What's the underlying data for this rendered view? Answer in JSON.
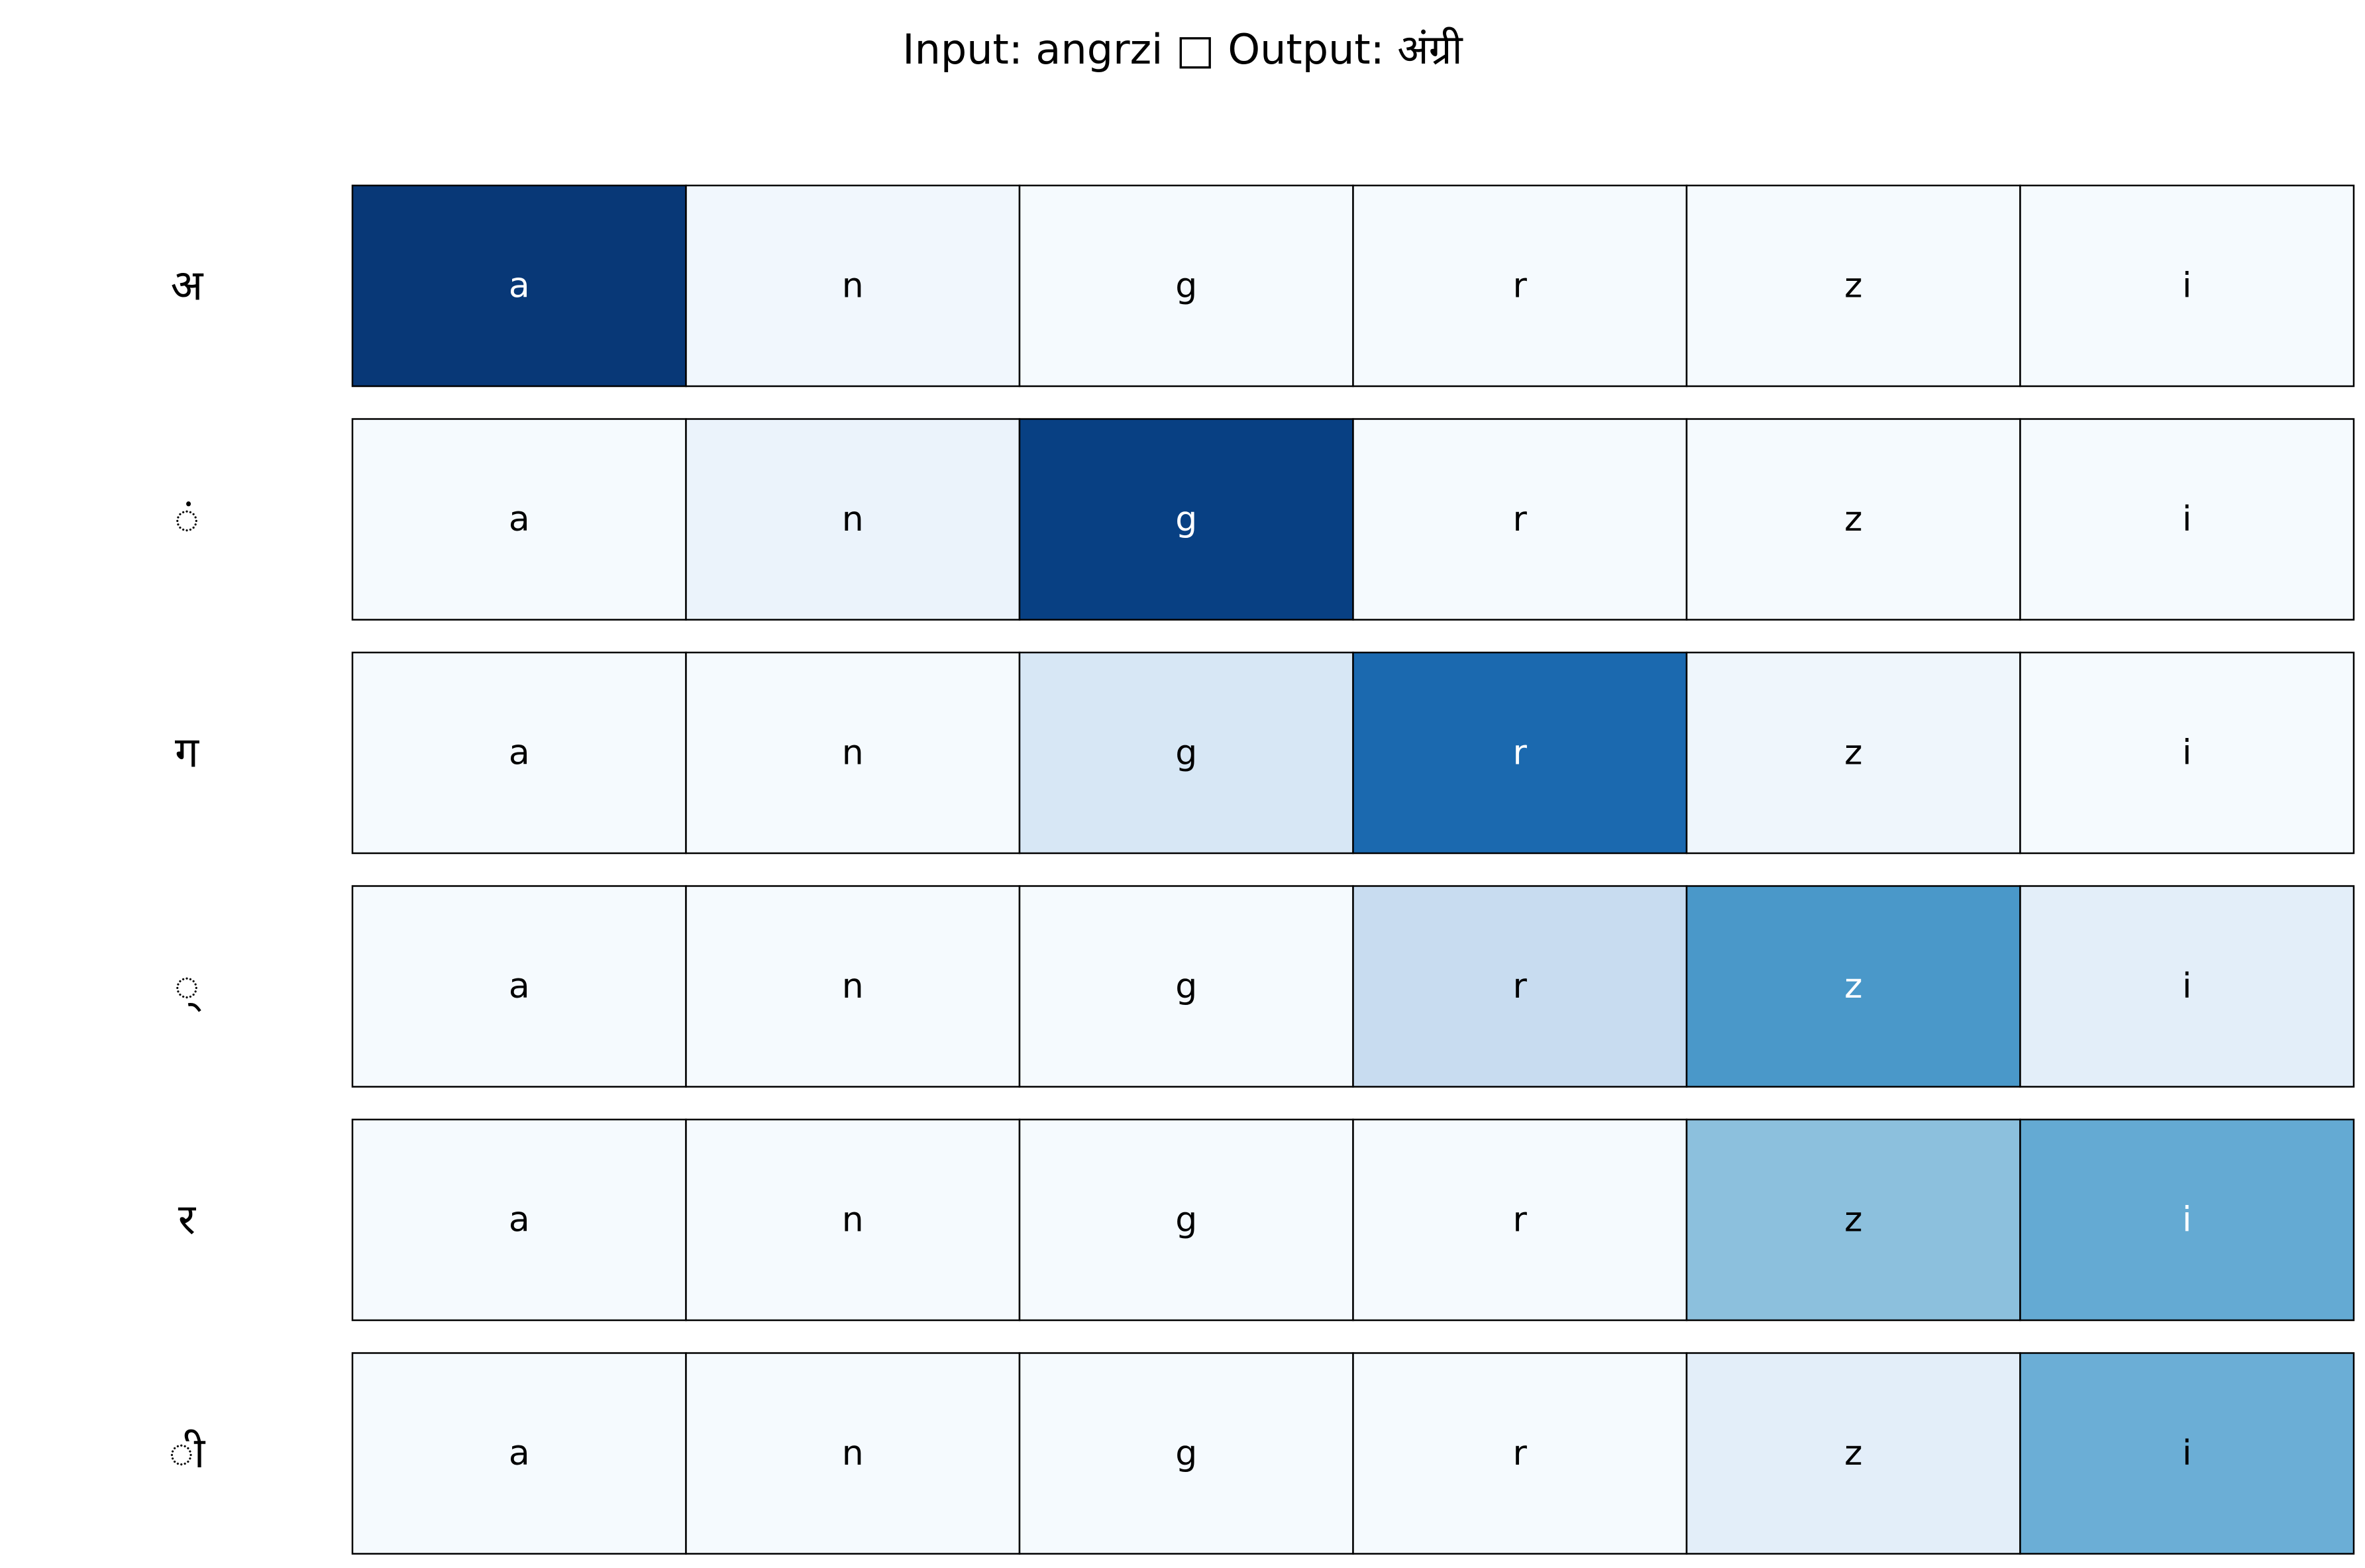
{
  "chart_data": {
    "type": "heatmap",
    "title": "Input: angrzi □ Output: अंग्री",
    "x": [
      "a",
      "n",
      "g",
      "r",
      "z",
      "i"
    ],
    "y": [
      "अ",
      "ं",
      "ग",
      "्",
      "र",
      "ी"
    ],
    "values": [
      [
        0.97,
        0.03,
        0.01,
        0.01,
        0.01,
        0.01
      ],
      [
        0.01,
        0.06,
        0.94,
        0.01,
        0.01,
        0.01
      ],
      [
        0.01,
        0.01,
        0.16,
        0.78,
        0.04,
        0.01
      ],
      [
        0.01,
        0.01,
        0.01,
        0.24,
        0.6,
        0.1
      ],
      [
        0.01,
        0.01,
        0.01,
        0.01,
        0.42,
        0.52
      ],
      [
        0.01,
        0.01,
        0.01,
        0.01,
        0.1,
        0.5
      ]
    ],
    "colormap": "Blues",
    "grid": false,
    "legend": "none"
  }
}
